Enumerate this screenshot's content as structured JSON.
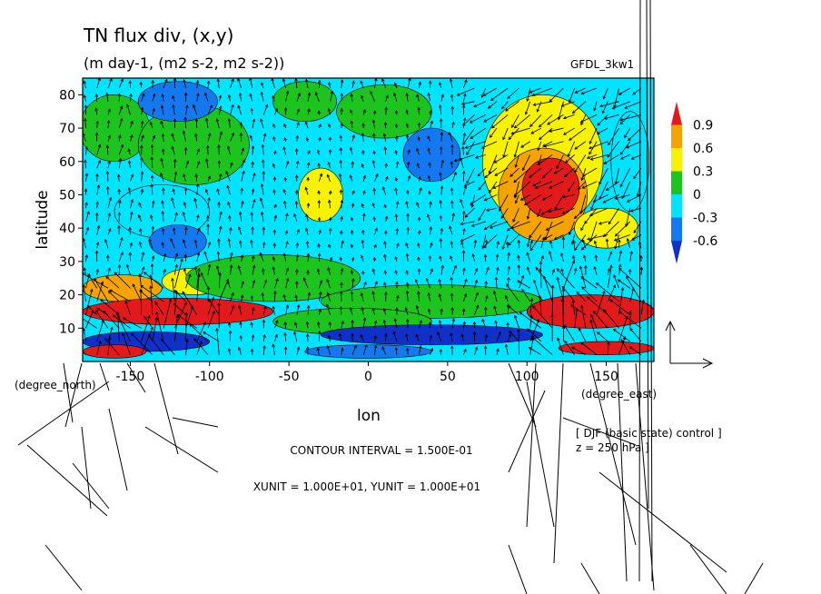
{
  "chart_data": {
    "type": "heatmap",
    "title": "TN flux div, (x,y)",
    "subtitle": "(m day-1, (m2 s-2, m2 s-2))",
    "model_label": "GFDL_3kw1",
    "xlabel": "lon",
    "ylabel": "latitude",
    "x_unit_label": "(degree_east)",
    "y_unit_label": "(degree_north)",
    "xlim": [
      -180,
      180
    ],
    "ylim": [
      0,
      85
    ],
    "x_ticks": [
      "-150",
      "-100",
      "-50",
      "0",
      "50",
      "100",
      "150"
    ],
    "x_tick_values": [
      -150,
      -100,
      -50,
      0,
      50,
      100,
      150
    ],
    "y_ticks": [
      "10",
      "20",
      "30",
      "40",
      "50",
      "60",
      "70",
      "80"
    ],
    "y_tick_values": [
      10,
      20,
      30,
      40,
      50,
      60,
      70,
      80
    ],
    "colorbar": {
      "labels": [
        "0.9",
        "0.6",
        "0.3",
        "0",
        "-0.3",
        "-0.6"
      ],
      "level_values": [
        0.9,
        0.6,
        0.3,
        0,
        -0.3,
        -0.6
      ],
      "colors": [
        "#e31a1c",
        "#f5a300",
        "#f7f200",
        "#1ec41e",
        "#00e4ff",
        "#1478f0",
        "#1030c8"
      ]
    },
    "contour_interval_text": "CONTOUR INTERVAL = 1.500E-01",
    "unit_text": "XUNIT = 1.000E+01, YUNIT = 1.000E+01",
    "overlay_text_1": "[ DJF (basic state) control ]",
    "overlay_text_2": "z = 250 hPa ]",
    "regions": [
      {
        "lon": -160,
        "lat": 70,
        "r_lon": 22,
        "r_lat": 10,
        "level": 0.15
      },
      {
        "lon": -110,
        "lat": 65,
        "r_lon": 35,
        "r_lat": 12,
        "level": 0.15
      },
      {
        "lon": -120,
        "lat": 78,
        "r_lon": 25,
        "r_lat": 6,
        "level": -0.45
      },
      {
        "lon": -40,
        "lat": 78,
        "r_lon": 20,
        "r_lat": 6,
        "level": 0.15
      },
      {
        "lon": 10,
        "lat": 75,
        "r_lon": 30,
        "r_lat": 8,
        "level": 0.15
      },
      {
        "lon": -30,
        "lat": 50,
        "r_lon": 14,
        "r_lat": 8,
        "level": 0.45
      },
      {
        "lon": -130,
        "lat": 45,
        "r_lon": 30,
        "r_lat": 8,
        "level": -0.15
      },
      {
        "lon": -120,
        "lat": 36,
        "r_lon": 18,
        "r_lat": 5,
        "level": -0.45
      },
      {
        "lon": 40,
        "lat": 62,
        "r_lon": 18,
        "r_lat": 8,
        "level": -0.45
      },
      {
        "lon": 110,
        "lat": 60,
        "r_lon": 38,
        "r_lat": 20,
        "level": 0.45
      },
      {
        "lon": 110,
        "lat": 50,
        "r_lon": 28,
        "r_lat": 14,
        "level": 0.75
      },
      {
        "lon": 115,
        "lat": 52,
        "r_lon": 18,
        "r_lat": 9,
        "level": 1.05
      },
      {
        "lon": 150,
        "lat": 40,
        "r_lon": 20,
        "r_lat": 6,
        "level": 0.45
      },
      {
        "lon": 165,
        "lat": 60,
        "r_lon": 12,
        "r_lat": 15,
        "level": -0.15
      },
      {
        "lon": -155,
        "lat": 22,
        "r_lon": 25,
        "r_lat": 4,
        "level": 0.75
      },
      {
        "lon": -110,
        "lat": 24,
        "r_lon": 20,
        "r_lat": 4,
        "level": 0.45
      },
      {
        "lon": -60,
        "lat": 25,
        "r_lon": 55,
        "r_lat": 7,
        "level": 0.15
      },
      {
        "lon": 40,
        "lat": 18,
        "r_lon": 70,
        "r_lat": 5,
        "level": 0.15
      },
      {
        "lon": -120,
        "lat": 15,
        "r_lon": 60,
        "r_lat": 4,
        "level": 1.05
      },
      {
        "lon": 140,
        "lat": 15,
        "r_lon": 40,
        "r_lat": 5,
        "level": 1.05
      },
      {
        "lon": -10,
        "lat": 12,
        "r_lon": 50,
        "r_lat": 4,
        "level": 0.15
      },
      {
        "lon": 40,
        "lat": 8,
        "r_lon": 70,
        "r_lat": 3,
        "level": -0.75
      },
      {
        "lon": -140,
        "lat": 6,
        "r_lon": 40,
        "r_lat": 3,
        "level": -0.75
      },
      {
        "lon": -160,
        "lat": 3,
        "r_lon": 20,
        "r_lat": 2,
        "level": 1.05
      },
      {
        "lon": 150,
        "lat": 4,
        "r_lon": 30,
        "r_lat": 2,
        "level": 1.05
      },
      {
        "lon": 0,
        "lat": 3,
        "r_lon": 40,
        "r_lat": 2,
        "level": -0.45
      }
    ]
  }
}
